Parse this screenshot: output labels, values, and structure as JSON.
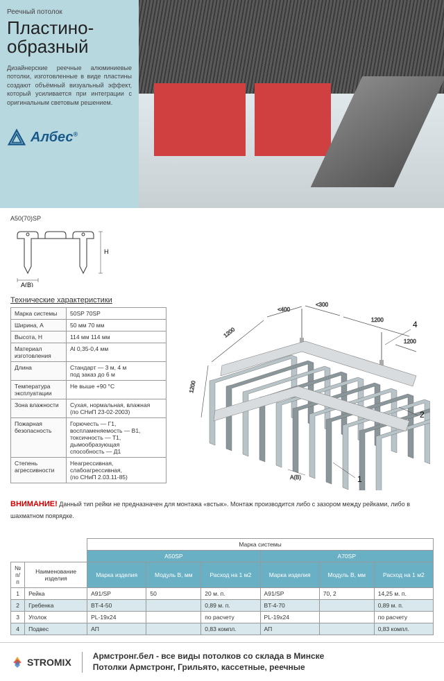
{
  "header": {
    "subtitle": "Реечный потолок",
    "title": "Пластино-\nобразный",
    "description": "Дизайнерские реечные алюминиевые потолки, изготовленные в виде пластины создают объёмный визуальный эффект, который усиливается при интеграции с оригинальным световым решением.",
    "logo_text": "Албес"
  },
  "profile": {
    "label": "A50(70)SP",
    "width_label": "A(B)",
    "height_label": "H",
    "colors": {
      "line": "#333",
      "fill": "#fff"
    }
  },
  "specs": {
    "title": "Технические характеристики",
    "rows": [
      {
        "k": "Марка системы",
        "v": "50SP    70SP"
      },
      {
        "k": "Ширина, A",
        "v": "50 мм   70 мм"
      },
      {
        "k": "Высота, H",
        "v": "114 мм  114 мм"
      },
      {
        "k": "Материал изготовления",
        "v": "Al 0,35-0,4 мм"
      },
      {
        "k": "Длина",
        "v": "Стандарт — 3 м, 4 м\nпод заказ до 6 м"
      },
      {
        "k": "Температура эксплуатации",
        "v": "Не выше +90 °C"
      },
      {
        "k": "Зона влажности",
        "v": "Сухая, нормальная, влажная\n(по СНиП 23-02-2003)"
      },
      {
        "k": "Пожарная безопасность",
        "v": "Горючесть — Г1,\nвоспламеняемость — В1,\nтоксичность — Т1,\nдымообразующая\nспособность — Д1"
      },
      {
        "k": "Степень агрессивности",
        "v": "Неагрессивная,\nслабоагрессивная,\n(по СНиП 2.03.11-85)"
      }
    ]
  },
  "iso": {
    "dims": {
      "d1": "<400",
      "d2": "<300",
      "d3": "1200",
      "d4": "1200",
      "d5": "1200",
      "d6": "1200",
      "ab": "A(B)"
    },
    "callouts": [
      "1",
      "2",
      "4"
    ],
    "colors": {
      "panel": "#b8c4c8",
      "panel_dark": "#8a969a",
      "rail": "#d8dcde",
      "line": "#555"
    }
  },
  "warning": {
    "label": "ВНИМАНИЕ!",
    "text": " Данный тип рейки не предназначен для монтажа «встык». Монтаж производится либо с зазором между рейками, либо в шахматном поярядке."
  },
  "bottom": {
    "supertitle": "Марка системы",
    "col_groups": [
      "A50SP",
      "A70SP"
    ],
    "headers": {
      "num": "№ п/п",
      "name": "Наименование изделия",
      "brand": "Марка изделия",
      "module": "Модуль B, мм",
      "rate": "Расход на 1 м2"
    },
    "rows": [
      {
        "n": "1",
        "name": "Рейка",
        "b1": "A91/SP",
        "m1": "50",
        "r1": "20 м. п.",
        "b2": "A91/SP",
        "m2": "70, 2",
        "r2": "14,25 м. п."
      },
      {
        "n": "2",
        "name": "Гребенка",
        "b1": "BT-4-50",
        "m1": "",
        "r1": "0,89 м. п.",
        "b2": "BT-4-70",
        "m2": "",
        "r2": "0,89 м. п."
      },
      {
        "n": "3",
        "name": "Уголок",
        "b1": "PL-19x24",
        "m1": "",
        "r1": "по расчету",
        "b2": "PL-19x24",
        "m2": "",
        "r2": "по расчету"
      },
      {
        "n": "4",
        "name": "Подвес",
        "b1": "АП",
        "m1": "",
        "r1": "0,83 компл.",
        "b2": "АП",
        "m2": "",
        "r2": "0,83 компл."
      }
    ]
  },
  "footer": {
    "stromix": "STROMIX",
    "line1": "Армстронг.бел - все виды потолков со склада в Минске",
    "line2": "Потолки Армстронг, Грильято, кассетные, реечные"
  },
  "colors": {
    "header_bg": "#b8d8e0",
    "accent": "#6ab0c4",
    "warn": "#c00",
    "logo": "#1a5a8a"
  }
}
